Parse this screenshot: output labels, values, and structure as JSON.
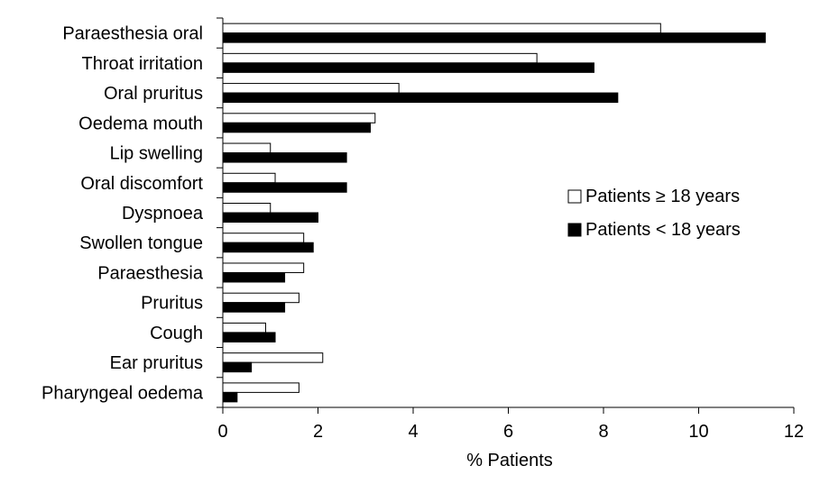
{
  "chart_data": {
    "type": "bar",
    "orientation": "horizontal",
    "title": "",
    "xlabel": "% Patients",
    "ylabel": "",
    "xlim": [
      0,
      12
    ],
    "xticks": [
      0,
      2,
      4,
      6,
      8,
      10,
      12
    ],
    "grid": false,
    "legend_position": "right",
    "categories": [
      "Paraesthesia oral",
      "Throat irritation",
      "Oral pruritus",
      "Oedema mouth",
      "Lip swelling",
      "Oral discomfort",
      "Dyspnoea",
      "Swollen tongue",
      "Paraesthesia",
      "Pruritus",
      "Cough",
      "Ear pruritus",
      "Pharyngeal oedema"
    ],
    "series": [
      {
        "name": "Patients ≥ 18 years",
        "fill": "#ffffff",
        "stroke": "#000000",
        "values": [
          9.2,
          6.6,
          3.7,
          3.2,
          1.0,
          1.1,
          1.0,
          1.7,
          1.7,
          1.6,
          0.9,
          2.1,
          1.6
        ]
      },
      {
        "name": "Patients < 18 years",
        "fill": "#000000",
        "stroke": "#000000",
        "values": [
          11.4,
          7.8,
          8.3,
          3.1,
          2.6,
          2.6,
          2.0,
          1.9,
          1.3,
          1.3,
          1.1,
          0.6,
          0.3
        ]
      }
    ]
  }
}
